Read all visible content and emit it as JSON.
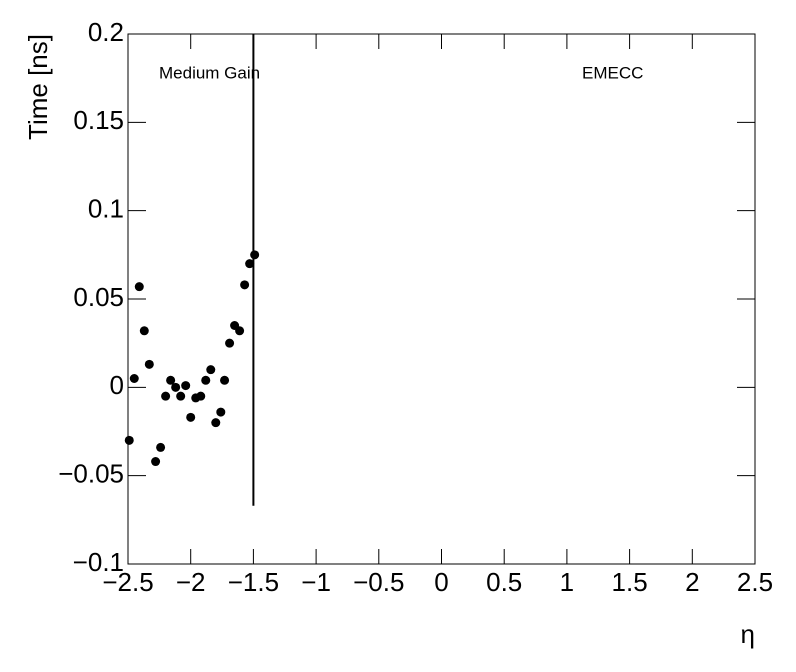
{
  "chart_data": {
    "type": "scatter",
    "x_label": "η",
    "y_label": "Time [ns]",
    "annotations": [
      "Medium Gain",
      "EMECC"
    ],
    "color": "#000000",
    "x": [
      -2.49,
      -2.45,
      -2.41,
      -2.37,
      -2.33,
      -2.28,
      -2.24,
      -2.2,
      -2.16,
      -2.12,
      -2.08,
      -2.04,
      -2.0,
      -1.96,
      -1.92,
      -1.88,
      -1.84,
      -1.8,
      -1.76,
      -1.73,
      -1.69,
      -1.65,
      -1.61,
      -1.57,
      -1.53,
      -1.49
    ],
    "values": [
      -0.03,
      0.005,
      0.057,
      0.032,
      0.013,
      -0.042,
      -0.034,
      -0.005,
      0.004,
      0.0,
      -0.005,
      0.001,
      -0.017,
      -0.006,
      -0.005,
      0.004,
      0.01,
      -0.02,
      -0.014,
      0.004,
      0.025,
      0.035,
      0.032,
      0.058,
      0.07,
      0.075
    ],
    "vline": {
      "x": -1.5,
      "y": [
        -0.067,
        0.2
      ]
    },
    "xlim": [
      -2.5,
      2.5
    ],
    "xticks": [
      {
        "value": -2.5,
        "label": "−2.5"
      },
      {
        "value": -2,
        "label": "−2"
      },
      {
        "value": -1.5,
        "label": "−1.5"
      },
      {
        "value": -1,
        "label": "−1"
      },
      {
        "value": -0.5,
        "label": "−0.5"
      },
      0,
      0.5,
      1,
      1.5,
      2,
      2.5
    ],
    "ylim": [
      -0.1,
      0.2
    ],
    "yticks": [
      {
        "value": -0.1,
        "label": "−0.1"
      },
      {
        "value": -0.05,
        "label": "−0.05"
      },
      0,
      0.05,
      0.1,
      0.15,
      0.2
    ],
    "grid": false
  }
}
